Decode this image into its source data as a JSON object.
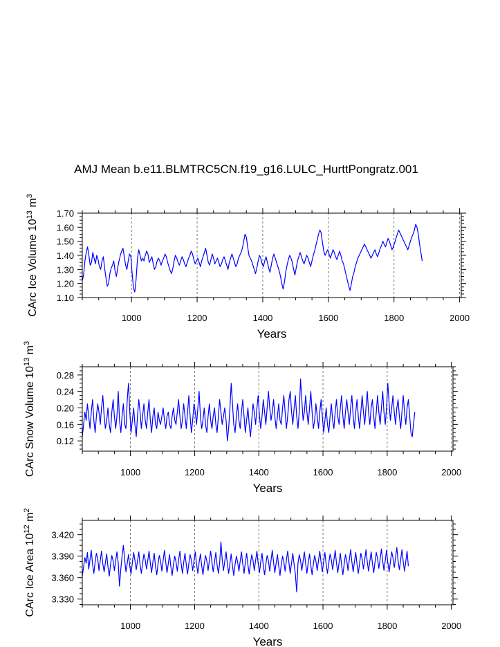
{
  "figure_title": "AMJ Mean b.e11.BLMTRC5CN.f19_g16.LULC_HurttPongratz.001",
  "colors": {
    "series": "#0000ff",
    "axis": "#000000",
    "grid": "#555555"
  },
  "chart_data": [
    {
      "type": "line",
      "name": "ice-volume",
      "title": "AMJ Mean b.e11.BLMTRC5CN.f19_g16.LULC_HurttPongratz.001",
      "xlabel": "Years",
      "ylabel_main": "CArc Ice Volume 10",
      "ylabel_sup": "13",
      "ylabel_unit": " m",
      "ylabel_unit_sup": "3",
      "xlim": [
        850,
        2005
      ],
      "ylim": [
        1.1,
        1.7
      ],
      "x_ticks": [
        1000,
        1200,
        1400,
        1600,
        1800,
        2000
      ],
      "x_tick_labels": [
        "1000",
        "1200",
        "1400",
        "1600",
        "1800",
        "2000"
      ],
      "y_ticks": [
        1.1,
        1.2,
        1.3,
        1.4,
        1.5,
        1.6,
        1.7
      ],
      "y_tick_labels": [
        "1.10",
        "1.20",
        "1.30",
        "1.40",
        "1.50",
        "1.60",
        "1.70"
      ],
      "grid_x": true,
      "series": [
        {
          "name": "Ice Volume",
          "x_start": 850,
          "x_step": 4,
          "values": [
            1.22,
            1.26,
            1.36,
            1.42,
            1.46,
            1.4,
            1.33,
            1.35,
            1.42,
            1.38,
            1.34,
            1.4,
            1.37,
            1.32,
            1.3,
            1.36,
            1.39,
            1.31,
            1.24,
            1.18,
            1.2,
            1.27,
            1.31,
            1.33,
            1.36,
            1.29,
            1.25,
            1.31,
            1.36,
            1.4,
            1.43,
            1.45,
            1.39,
            1.33,
            1.3,
            1.36,
            1.41,
            1.39,
            1.27,
            1.17,
            1.14,
            1.23,
            1.37,
            1.44,
            1.4,
            1.36,
            1.38,
            1.36,
            1.4,
            1.43,
            1.41,
            1.35,
            1.37,
            1.39,
            1.34,
            1.3,
            1.32,
            1.36,
            1.38,
            1.36,
            1.33,
            1.36,
            1.38,
            1.41,
            1.39,
            1.35,
            1.32,
            1.29,
            1.27,
            1.31,
            1.36,
            1.4,
            1.38,
            1.35,
            1.33,
            1.36,
            1.39,
            1.37,
            1.34,
            1.32,
            1.35,
            1.38,
            1.4,
            1.43,
            1.41,
            1.37,
            1.34,
            1.36,
            1.38,
            1.35,
            1.32,
            1.36,
            1.39,
            1.42,
            1.45,
            1.4,
            1.35,
            1.33,
            1.37,
            1.41,
            1.38,
            1.34,
            1.36,
            1.38,
            1.35,
            1.32,
            1.34,
            1.37,
            1.39,
            1.36,
            1.33,
            1.3,
            1.35,
            1.38,
            1.41,
            1.38,
            1.35,
            1.32,
            1.34,
            1.38,
            1.4,
            1.42,
            1.45,
            1.5,
            1.55,
            1.53,
            1.46,
            1.4,
            1.38,
            1.36,
            1.33,
            1.3,
            1.27,
            1.31,
            1.36,
            1.4,
            1.38,
            1.34,
            1.32,
            1.36,
            1.39,
            1.35,
            1.31,
            1.28,
            1.33,
            1.38,
            1.41,
            1.38,
            1.35,
            1.32,
            1.29,
            1.25,
            1.2,
            1.16,
            1.21,
            1.28,
            1.33,
            1.37,
            1.4,
            1.38,
            1.35,
            1.3,
            1.26,
            1.31,
            1.36,
            1.39,
            1.42,
            1.39,
            1.36,
            1.34,
            1.37,
            1.4,
            1.38,
            1.35,
            1.32,
            1.36,
            1.4,
            1.43,
            1.47,
            1.51,
            1.55,
            1.58,
            1.56,
            1.49,
            1.43,
            1.4,
            1.42,
            1.44,
            1.41,
            1.38,
            1.41,
            1.44,
            1.42,
            1.39,
            1.37,
            1.4,
            1.43,
            1.4,
            1.36,
            1.34,
            1.3,
            1.26,
            1.22,
            1.18,
            1.15,
            1.2,
            1.25,
            1.28,
            1.32,
            1.35,
            1.38,
            1.4,
            1.42,
            1.44,
            1.46,
            1.48,
            1.46,
            1.44,
            1.42,
            1.4,
            1.38,
            1.4,
            1.42,
            1.44,
            1.41,
            1.39,
            1.42,
            1.45,
            1.47,
            1.5,
            1.48,
            1.46,
            1.49,
            1.52,
            1.5,
            1.47,
            1.44,
            1.46,
            1.49,
            1.52,
            1.55,
            1.58,
            1.56,
            1.54,
            1.52,
            1.5,
            1.48,
            1.46,
            1.44,
            1.47,
            1.5,
            1.53,
            1.55,
            1.58,
            1.62,
            1.6,
            1.55,
            1.48,
            1.42,
            1.36
          ]
        }
      ]
    },
    {
      "type": "line",
      "name": "snow-volume",
      "xlabel": "Years",
      "ylabel_main": "CArc Snow Volume 10",
      "ylabel_sup": "13",
      "ylabel_unit": " m",
      "ylabel_unit_sup": "3",
      "xlim": [
        850,
        2005
      ],
      "ylim": [
        0.095,
        0.3
      ],
      "x_ticks": [
        1000,
        1200,
        1400,
        1600,
        1800,
        2000
      ],
      "x_tick_labels": [
        "1000",
        "1200",
        "1400",
        "1600",
        "1800",
        "2000"
      ],
      "y_ticks": [
        0.12,
        0.16,
        0.2,
        0.24,
        0.28
      ],
      "y_tick_labels": [
        "0.12",
        "0.16",
        "0.20",
        "0.24",
        "0.28"
      ],
      "grid_x": true,
      "series": [
        {
          "name": "Snow Volume",
          "x_start": 850,
          "x_step": 4,
          "values": [
            0.13,
            0.16,
            0.19,
            0.17,
            0.21,
            0.18,
            0.15,
            0.19,
            0.22,
            0.17,
            0.14,
            0.18,
            0.21,
            0.19,
            0.16,
            0.2,
            0.23,
            0.18,
            0.15,
            0.17,
            0.2,
            0.16,
            0.14,
            0.19,
            0.22,
            0.18,
            0.15,
            0.18,
            0.24,
            0.17,
            0.14,
            0.18,
            0.21,
            0.16,
            0.15,
            0.22,
            0.26,
            0.19,
            0.14,
            0.17,
            0.2,
            0.16,
            0.13,
            0.18,
            0.22,
            0.19,
            0.15,
            0.18,
            0.21,
            0.17,
            0.15,
            0.19,
            0.22,
            0.17,
            0.14,
            0.18,
            0.2,
            0.16,
            0.15,
            0.19,
            0.17,
            0.16,
            0.18,
            0.2,
            0.17,
            0.15,
            0.18,
            0.19,
            0.16,
            0.15,
            0.18,
            0.2,
            0.17,
            0.16,
            0.19,
            0.22,
            0.18,
            0.15,
            0.17,
            0.21,
            0.18,
            0.15,
            0.19,
            0.23,
            0.18,
            0.14,
            0.17,
            0.21,
            0.19,
            0.16,
            0.2,
            0.24,
            0.18,
            0.15,
            0.17,
            0.2,
            0.16,
            0.14,
            0.18,
            0.21,
            0.17,
            0.15,
            0.18,
            0.2,
            0.16,
            0.14,
            0.18,
            0.22,
            0.19,
            0.16,
            0.18,
            0.2,
            0.17,
            0.12,
            0.15,
            0.2,
            0.26,
            0.21,
            0.16,
            0.14,
            0.18,
            0.21,
            0.17,
            0.15,
            0.19,
            0.22,
            0.18,
            0.14,
            0.17,
            0.2,
            0.16,
            0.13,
            0.17,
            0.21,
            0.19,
            0.16,
            0.2,
            0.23,
            0.18,
            0.15,
            0.18,
            0.22,
            0.19,
            0.16,
            0.2,
            0.24,
            0.2,
            0.17,
            0.19,
            0.22,
            0.18,
            0.15,
            0.18,
            0.21,
            0.17,
            0.16,
            0.2,
            0.23,
            0.19,
            0.15,
            0.18,
            0.22,
            0.24,
            0.19,
            0.16,
            0.2,
            0.23,
            0.18,
            0.15,
            0.19,
            0.27,
            0.22,
            0.17,
            0.19,
            0.23,
            0.19,
            0.16,
            0.2,
            0.24,
            0.19,
            0.15,
            0.17,
            0.21,
            0.18,
            0.15,
            0.19,
            0.22,
            0.18,
            0.14,
            0.17,
            0.2,
            0.16,
            0.14,
            0.18,
            0.21,
            0.17,
            0.15,
            0.19,
            0.22,
            0.18,
            0.16,
            0.2,
            0.23,
            0.18,
            0.15,
            0.19,
            0.22,
            0.19,
            0.16,
            0.2,
            0.23,
            0.18,
            0.15,
            0.19,
            0.22,
            0.18,
            0.15,
            0.19,
            0.23,
            0.19,
            0.16,
            0.2,
            0.24,
            0.19,
            0.16,
            0.2,
            0.22,
            0.18,
            0.15,
            0.19,
            0.23,
            0.19,
            0.16,
            0.2,
            0.24,
            0.19,
            0.16,
            0.2,
            0.26,
            0.21,
            0.17,
            0.2,
            0.23,
            0.19,
            0.16,
            0.2,
            0.22,
            0.18,
            0.15,
            0.19,
            0.23,
            0.19,
            0.16,
            0.2,
            0.22,
            0.18,
            0.14,
            0.13,
            0.16,
            0.19
          ]
        }
      ]
    },
    {
      "type": "line",
      "name": "ice-area",
      "xlabel": "Years",
      "ylabel_main": "CArc Ice Area 10",
      "ylabel_sup": "12",
      "ylabel_unit": " m",
      "ylabel_unit_sup": "2",
      "xlim": [
        850,
        2005
      ],
      "ylim": [
        3.322,
        3.44
      ],
      "x_ticks": [
        1000,
        1200,
        1400,
        1600,
        1800,
        2000
      ],
      "x_tick_labels": [
        "1000",
        "1200",
        "1400",
        "1600",
        "1800",
        "2000"
      ],
      "y_ticks": [
        3.33,
        3.36,
        3.39,
        3.42
      ],
      "y_tick_labels": [
        "3.330",
        "3.360",
        "3.390",
        "3.420"
      ],
      "grid_x": true,
      "series": [
        {
          "name": "Ice Area",
          "x_start": 850,
          "x_step": 4,
          "values": [
            3.362,
            3.375,
            3.388,
            3.38,
            3.395,
            3.372,
            3.385,
            3.398,
            3.378,
            3.366,
            3.382,
            3.394,
            3.386,
            3.37,
            3.384,
            3.397,
            3.379,
            3.368,
            3.381,
            3.393,
            3.375,
            3.362,
            3.378,
            3.391,
            3.383,
            3.37,
            3.384,
            3.396,
            3.38,
            3.348,
            3.372,
            3.39,
            3.405,
            3.385,
            3.368,
            3.38,
            3.392,
            3.376,
            3.365,
            3.381,
            3.395,
            3.384,
            3.371,
            3.383,
            3.396,
            3.378,
            3.366,
            3.38,
            3.393,
            3.385,
            3.372,
            3.384,
            3.397,
            3.38,
            3.367,
            3.382,
            3.394,
            3.376,
            3.364,
            3.379,
            3.391,
            3.383,
            3.369,
            3.384,
            3.398,
            3.381,
            3.367,
            3.38,
            3.392,
            3.375,
            3.363,
            3.378,
            3.39,
            3.382,
            3.369,
            3.384,
            3.397,
            3.38,
            3.366,
            3.381,
            3.394,
            3.378,
            3.365,
            3.38,
            3.392,
            3.384,
            3.37,
            3.383,
            3.396,
            3.379,
            3.366,
            3.381,
            3.393,
            3.377,
            3.364,
            3.379,
            3.391,
            3.383,
            3.37,
            3.384,
            3.397,
            3.381,
            3.368,
            3.382,
            3.395,
            3.378,
            3.366,
            3.38,
            3.41,
            3.385,
            3.37,
            3.383,
            3.396,
            3.379,
            3.366,
            3.38,
            3.393,
            3.376,
            3.363,
            3.378,
            3.39,
            3.382,
            3.369,
            3.383,
            3.396,
            3.379,
            3.366,
            3.381,
            3.394,
            3.378,
            3.365,
            3.38,
            3.392,
            3.384,
            3.37,
            3.384,
            3.397,
            3.38,
            3.367,
            3.382,
            3.394,
            3.377,
            3.364,
            3.379,
            3.391,
            3.383,
            3.369,
            3.384,
            3.398,
            3.381,
            3.367,
            3.38,
            3.392,
            3.376,
            3.363,
            3.378,
            3.39,
            3.382,
            3.369,
            3.384,
            3.397,
            3.38,
            3.366,
            3.381,
            3.394,
            3.378,
            3.365,
            3.34,
            3.38,
            3.392,
            3.384,
            3.37,
            3.383,
            3.396,
            3.379,
            3.366,
            3.381,
            3.393,
            3.377,
            3.364,
            3.379,
            3.391,
            3.383,
            3.37,
            3.384,
            3.397,
            3.381,
            3.368,
            3.382,
            3.395,
            3.378,
            3.366,
            3.38,
            3.393,
            3.385,
            3.371,
            3.384,
            3.398,
            3.381,
            3.367,
            3.381,
            3.394,
            3.377,
            3.364,
            3.379,
            3.392,
            3.384,
            3.37,
            3.385,
            3.399,
            3.382,
            3.368,
            3.382,
            3.395,
            3.379,
            3.366,
            3.38,
            3.394,
            3.386,
            3.372,
            3.385,
            3.399,
            3.382,
            3.369,
            3.383,
            3.396,
            3.38,
            3.367,
            3.381,
            3.395,
            3.387,
            3.373,
            3.386,
            3.4,
            3.383,
            3.37,
            3.384,
            3.398,
            3.381,
            3.368,
            3.382,
            3.396,
            3.388,
            3.374,
            3.387,
            3.402,
            3.384,
            3.371,
            3.385,
            3.399,
            3.382,
            3.369,
            3.383,
            3.397,
            3.376
          ]
        }
      ]
    }
  ]
}
